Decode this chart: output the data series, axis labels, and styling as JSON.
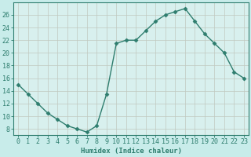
{
  "x": [
    0,
    1,
    2,
    3,
    4,
    5,
    6,
    7,
    8,
    9,
    10,
    11,
    12,
    13,
    14,
    15,
    16,
    17,
    18,
    19,
    20,
    21,
    22,
    23
  ],
  "y": [
    15,
    13.5,
    12,
    10.5,
    9.5,
    8.5,
    8,
    7.5,
    8.5,
    13.5,
    21.5,
    22,
    22,
    23.5,
    25,
    26,
    26.5,
    27,
    25,
    23,
    21.5,
    20,
    17,
    16
  ],
  "line_color": "#2e7d6e",
  "marker": "D",
  "markersize": 2.5,
  "linewidth": 1.0,
  "bg_color": "#c8ecea",
  "plot_bg_color": "#d8f0ee",
  "grid_color": "#c0c8c0",
  "xlabel": "Humidex (Indice chaleur)",
  "xlim": [
    -0.5,
    23.5
  ],
  "ylim": [
    7,
    28
  ],
  "yticks": [
    8,
    10,
    12,
    14,
    16,
    18,
    20,
    22,
    24,
    26
  ],
  "xticks": [
    0,
    1,
    2,
    3,
    4,
    5,
    6,
    7,
    8,
    9,
    10,
    11,
    12,
    13,
    14,
    15,
    16,
    17,
    18,
    19,
    20,
    21,
    22,
    23
  ],
  "xlabel_fontsize": 6.5,
  "tick_fontsize": 6.0,
  "text_color": "#2e7d6e",
  "spine_color": "#2e7d6e"
}
